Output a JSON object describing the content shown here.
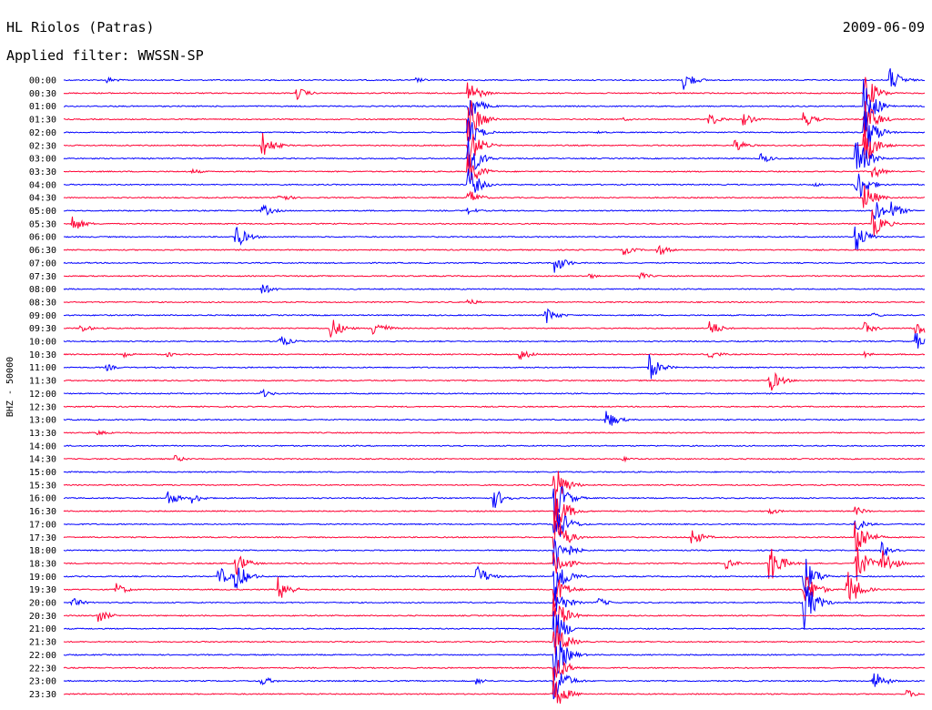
{
  "chart_data": {
    "type": "line",
    "title": "HL Riolos (Patras)",
    "date": "2009-06-09",
    "subtitle": "Applied filter: WWSSN-SP",
    "ylabel": "BHZ - 50000",
    "legend": "none",
    "grid": false,
    "colors": [
      "#0000ff",
      "#ff0033"
    ],
    "rows": [
      {
        "label": "00:00",
        "color": "#0000ff",
        "events": [
          [
            0.05,
            4
          ],
          [
            0.41,
            3
          ],
          [
            0.72,
            12
          ],
          [
            0.96,
            14
          ]
        ]
      },
      {
        "label": "00:30",
        "color": "#ff0033",
        "events": [
          [
            0.27,
            8
          ],
          [
            0.47,
            15
          ],
          [
            0.93,
            25
          ]
        ]
      },
      {
        "label": "01:00",
        "color": "#0000ff",
        "events": [
          [
            0.47,
            20
          ],
          [
            0.93,
            30
          ]
        ]
      },
      {
        "label": "01:30",
        "color": "#ff0033",
        "events": [
          [
            0.47,
            30
          ],
          [
            0.65,
            2
          ],
          [
            0.75,
            8
          ],
          [
            0.79,
            7
          ],
          [
            0.86,
            9
          ],
          [
            0.93,
            25
          ]
        ]
      },
      {
        "label": "02:00",
        "color": "#0000ff",
        "events": [
          [
            0.47,
            18
          ],
          [
            0.62,
            2
          ],
          [
            0.93,
            30
          ]
        ]
      },
      {
        "label": "02:30",
        "color": "#ff0033",
        "events": [
          [
            0.23,
            16
          ],
          [
            0.47,
            25
          ],
          [
            0.78,
            8
          ],
          [
            0.93,
            25
          ]
        ]
      },
      {
        "label": "03:00",
        "color": "#0000ff",
        "events": [
          [
            0.47,
            25
          ],
          [
            0.81,
            6
          ],
          [
            0.92,
            30
          ]
        ]
      },
      {
        "label": "03:30",
        "color": "#ff0033",
        "events": [
          [
            0.15,
            3
          ],
          [
            0.47,
            20
          ],
          [
            0.94,
            8
          ]
        ]
      },
      {
        "label": "04:00",
        "color": "#0000ff",
        "events": [
          [
            0.47,
            20
          ],
          [
            0.87,
            3
          ],
          [
            0.92,
            25
          ]
        ]
      },
      {
        "label": "04:30",
        "color": "#ff0033",
        "events": [
          [
            0.25,
            6
          ],
          [
            0.47,
            10
          ],
          [
            0.93,
            16
          ]
        ]
      },
      {
        "label": "05:00",
        "color": "#0000ff",
        "events": [
          [
            0.23,
            8
          ],
          [
            0.47,
            4
          ],
          [
            0.94,
            15
          ],
          [
            0.96,
            12
          ]
        ]
      },
      {
        "label": "05:30",
        "color": "#ff0033",
        "events": [
          [
            0.01,
            10
          ],
          [
            0.94,
            16
          ]
        ]
      },
      {
        "label": "06:00",
        "color": "#0000ff",
        "events": [
          [
            0.2,
            14
          ],
          [
            0.92,
            18
          ]
        ]
      },
      {
        "label": "06:30",
        "color": "#ff0033",
        "events": [
          [
            0.65,
            6
          ],
          [
            0.69,
            7
          ]
        ]
      },
      {
        "label": "07:00",
        "color": "#0000ff",
        "events": [
          [
            0.57,
            12
          ]
        ]
      },
      {
        "label": "07:30",
        "color": "#ff0033",
        "events": [
          [
            0.61,
            3
          ],
          [
            0.67,
            4
          ]
        ]
      },
      {
        "label": "08:00",
        "color": "#0000ff",
        "events": [
          [
            0.23,
            7
          ]
        ]
      },
      {
        "label": "08:30",
        "color": "#ff0033",
        "events": [
          [
            0.47,
            4
          ]
        ]
      },
      {
        "label": "09:00",
        "color": "#0000ff",
        "events": [
          [
            0.56,
            10
          ],
          [
            0.94,
            3
          ]
        ]
      },
      {
        "label": "09:30",
        "color": "#ff0033",
        "events": [
          [
            0.02,
            5
          ],
          [
            0.31,
            14
          ],
          [
            0.36,
            12
          ],
          [
            0.75,
            10
          ],
          [
            0.93,
            7
          ],
          [
            0.99,
            12
          ]
        ]
      },
      {
        "label": "10:00",
        "color": "#0000ff",
        "events": [
          [
            0.25,
            8
          ],
          [
            0.99,
            10
          ]
        ]
      },
      {
        "label": "10:30",
        "color": "#ff0033",
        "events": [
          [
            0.07,
            3
          ],
          [
            0.12,
            3
          ],
          [
            0.53,
            7
          ],
          [
            0.75,
            6
          ],
          [
            0.93,
            3
          ]
        ]
      },
      {
        "label": "11:00",
        "color": "#0000ff",
        "events": [
          [
            0.05,
            4
          ],
          [
            0.68,
            16
          ]
        ]
      },
      {
        "label": "11:30",
        "color": "#ff0033",
        "events": [
          [
            0.82,
            14
          ]
        ]
      },
      {
        "label": "12:00",
        "color": "#0000ff",
        "events": [
          [
            0.23,
            5
          ]
        ]
      },
      {
        "label": "12:30",
        "color": "#ff0033",
        "events": []
      },
      {
        "label": "13:00",
        "color": "#0000ff",
        "events": [
          [
            0.63,
            12
          ]
        ]
      },
      {
        "label": "13:30",
        "color": "#ff0033",
        "events": [
          [
            0.04,
            3
          ]
        ]
      },
      {
        "label": "14:00",
        "color": "#0000ff",
        "events": []
      },
      {
        "label": "14:30",
        "color": "#ff0033",
        "events": [
          [
            0.13,
            4
          ],
          [
            0.65,
            3
          ]
        ]
      },
      {
        "label": "15:00",
        "color": "#0000ff",
        "events": []
      },
      {
        "label": "15:30",
        "color": "#ff0033",
        "events": [
          [
            0.57,
            25
          ]
        ]
      },
      {
        "label": "16:00",
        "color": "#0000ff",
        "events": [
          [
            0.12,
            10
          ],
          [
            0.15,
            6
          ],
          [
            0.5,
            12
          ],
          [
            0.57,
            30
          ]
        ]
      },
      {
        "label": "16:30",
        "color": "#ff0033",
        "events": [
          [
            0.57,
            30
          ],
          [
            0.82,
            4
          ],
          [
            0.92,
            5
          ]
        ]
      },
      {
        "label": "17:00",
        "color": "#0000ff",
        "events": [
          [
            0.57,
            30
          ],
          [
            0.92,
            8
          ]
        ]
      },
      {
        "label": "17:30",
        "color": "#ff0033",
        "events": [
          [
            0.57,
            30
          ],
          [
            0.73,
            10
          ],
          [
            0.92,
            25
          ]
        ]
      },
      {
        "label": "18:00",
        "color": "#0000ff",
        "events": [
          [
            0.57,
            30
          ],
          [
            0.95,
            10
          ]
        ]
      },
      {
        "label": "18:30",
        "color": "#ff0033",
        "events": [
          [
            0.2,
            14
          ],
          [
            0.57,
            20
          ],
          [
            0.77,
            6
          ],
          [
            0.82,
            25
          ],
          [
            0.92,
            25
          ],
          [
            0.95,
            20
          ]
        ]
      },
      {
        "label": "19:00",
        "color": "#0000ff",
        "events": [
          [
            0.18,
            12
          ],
          [
            0.2,
            18
          ],
          [
            0.48,
            14
          ],
          [
            0.57,
            30
          ],
          [
            0.86,
            25
          ]
        ]
      },
      {
        "label": "19:30",
        "color": "#ff0033",
        "events": [
          [
            0.06,
            8
          ],
          [
            0.25,
            15
          ],
          [
            0.57,
            20
          ],
          [
            0.86,
            25
          ],
          [
            0.91,
            25
          ]
        ]
      },
      {
        "label": "20:00",
        "color": "#0000ff",
        "events": [
          [
            0.01,
            6
          ],
          [
            0.57,
            20
          ],
          [
            0.62,
            6
          ],
          [
            0.86,
            30
          ]
        ]
      },
      {
        "label": "20:30",
        "color": "#ff0033",
        "events": [
          [
            0.04,
            8
          ],
          [
            0.57,
            25
          ]
        ]
      },
      {
        "label": "21:00",
        "color": "#0000ff",
        "events": [
          [
            0.57,
            25
          ]
        ]
      },
      {
        "label": "21:30",
        "color": "#ff0033",
        "events": [
          [
            0.57,
            25
          ]
        ]
      },
      {
        "label": "22:00",
        "color": "#0000ff",
        "events": [
          [
            0.57,
            30
          ]
        ]
      },
      {
        "label": "22:30",
        "color": "#ff0033",
        "events": [
          [
            0.57,
            20
          ]
        ]
      },
      {
        "label": "23:00",
        "color": "#0000ff",
        "events": [
          [
            0.23,
            6
          ],
          [
            0.48,
            4
          ],
          [
            0.94,
            14
          ],
          [
            0.57,
            25
          ]
        ]
      },
      {
        "label": "23:30",
        "color": "#ff0033",
        "events": [
          [
            0.57,
            20
          ],
          [
            0.98,
            5
          ]
        ]
      }
    ]
  }
}
